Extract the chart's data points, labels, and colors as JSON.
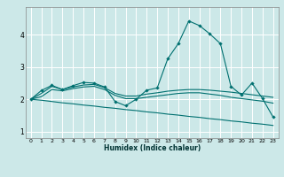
{
  "xlabel": "Humidex (Indice chaleur)",
  "bg_color": "#cce8e8",
  "grid_color": "#ffffff",
  "line_color": "#007070",
  "xlim": [
    -0.5,
    23.5
  ],
  "ylim": [
    0.8,
    4.85
  ],
  "xticks": [
    0,
    1,
    2,
    3,
    4,
    5,
    6,
    7,
    8,
    9,
    10,
    11,
    12,
    13,
    14,
    15,
    16,
    17,
    18,
    19,
    20,
    21,
    22,
    23
  ],
  "yticks": [
    1,
    2,
    3,
    4
  ],
  "line1_x": [
    0,
    1,
    2,
    3,
    4,
    5,
    6,
    7,
    8,
    9,
    10,
    11,
    12,
    13,
    14,
    15,
    16,
    17,
    18,
    19,
    20,
    21,
    22,
    23
  ],
  "line1_y": [
    2.0,
    2.27,
    2.43,
    2.3,
    2.42,
    2.52,
    2.5,
    2.38,
    1.93,
    1.8,
    2.0,
    2.28,
    2.35,
    3.25,
    3.72,
    4.42,
    4.28,
    4.02,
    3.72,
    2.4,
    2.13,
    2.5,
    2.02,
    1.45
  ],
  "line2_x": [
    0,
    1,
    2,
    3,
    4,
    5,
    6,
    7,
    8,
    9,
    10,
    11,
    12,
    13,
    14,
    15,
    16,
    17,
    18,
    19,
    20,
    21,
    22,
    23
  ],
  "line2_y": [
    2.0,
    2.18,
    2.4,
    2.3,
    2.38,
    2.44,
    2.46,
    2.36,
    2.18,
    2.1,
    2.1,
    2.16,
    2.2,
    2.25,
    2.28,
    2.3,
    2.3,
    2.28,
    2.25,
    2.22,
    2.18,
    2.14,
    2.1,
    2.06
  ],
  "line3_x": [
    0,
    1,
    2,
    3,
    4,
    5,
    6,
    7,
    8,
    9,
    10,
    11,
    12,
    13,
    14,
    15,
    16,
    17,
    18,
    19,
    20,
    21,
    22,
    23
  ],
  "line3_y": [
    2.0,
    2.08,
    2.3,
    2.26,
    2.33,
    2.38,
    2.4,
    2.3,
    2.12,
    2.02,
    2.02,
    2.06,
    2.1,
    2.14,
    2.18,
    2.2,
    2.2,
    2.16,
    2.12,
    2.06,
    2.02,
    1.98,
    1.94,
    1.88
  ],
  "line4_x": [
    0,
    1,
    2,
    3,
    4,
    5,
    6,
    7,
    8,
    9,
    10,
    11,
    12,
    13,
    14,
    15,
    16,
    17,
    18,
    19,
    20,
    21,
    22,
    23
  ],
  "line4_y": [
    2.0,
    1.97,
    1.93,
    1.89,
    1.86,
    1.82,
    1.79,
    1.75,
    1.72,
    1.68,
    1.65,
    1.61,
    1.58,
    1.54,
    1.51,
    1.47,
    1.44,
    1.4,
    1.37,
    1.33,
    1.3,
    1.26,
    1.23,
    1.19
  ]
}
